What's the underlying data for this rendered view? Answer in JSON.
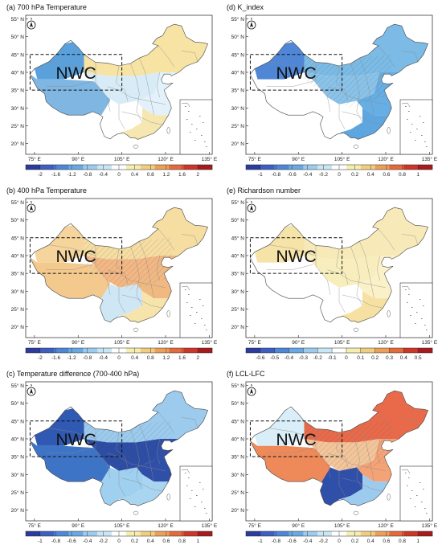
{
  "lat_labels": [
    "55° N",
    "50° N",
    "45° N",
    "40° N",
    "35° N",
    "30° N",
    "25° N",
    "20° N"
  ],
  "lon_labels": [
    "75° E",
    "90° E",
    "105° E",
    "120° E",
    "135° E"
  ],
  "region_label": "NWC",
  "north_arrow": {
    "letter": "N",
    "icon": "north-arrow-icon"
  },
  "panels": [
    {
      "id": "a",
      "title": "(a) 700 hPa Temperature",
      "colorbar_ticks": [
        "-2",
        "-1.6",
        "-1.2",
        "-0.8",
        "-0.4",
        "0",
        "0.4",
        "0.8",
        "1.2",
        "1.6",
        "2"
      ],
      "colorbar_colors": [
        "#2b3c9e",
        "#3e5fc1",
        "#4f86d6",
        "#6aa7e3",
        "#9ccbee",
        "#c9e6f5",
        "#ffffff",
        "#f6edb0",
        "#f1cd7f",
        "#ec9f58",
        "#e36a3d",
        "#cc3628",
        "#a81b1d"
      ],
      "map": {
        "west": "#7fb7e2",
        "northwest": "#5aa1dc",
        "north": "#f7e3a3",
        "east": "#e3f1fa",
        "south": "#ffffff",
        "southeast": "#f6e7b0",
        "center": "#d8ecf7"
      },
      "hatch": false
    },
    {
      "id": "b",
      "title": "(b) 400 hPa Temperature",
      "colorbar_ticks": [
        "-2",
        "-1.6",
        "-1.2",
        "-0.8",
        "-0.4",
        "0",
        "0.4",
        "0.8",
        "1.2",
        "1.6",
        "2"
      ],
      "colorbar_colors": [
        "#2b3c9e",
        "#3e5fc1",
        "#4f86d6",
        "#6aa7e3",
        "#9ccbee",
        "#c9e6f5",
        "#ffffff",
        "#f6edb0",
        "#f1cd7f",
        "#ec9f58",
        "#e36a3d",
        "#cc3628",
        "#a81b1d"
      ],
      "map": {
        "west": "#f3c98e",
        "northwest": "#f6d59c",
        "north": "#f6dda2",
        "east": "#f0b982",
        "south": "#cfe7f5",
        "southeast": "#f6e4ab",
        "center": "#f2b784"
      },
      "hatch": true
    },
    {
      "id": "c",
      "title": "(c) Temperature difference (700-400 hPa)",
      "colorbar_ticks": [
        "-1",
        "-0.8",
        "-0.6",
        "-0.4",
        "-0.2",
        "0",
        "0.2",
        "0.4",
        "0.6",
        "0.8",
        "1"
      ],
      "colorbar_colors": [
        "#2b3c9e",
        "#3e5fc1",
        "#4f86d6",
        "#6aa7e3",
        "#9ccbee",
        "#c9e6f5",
        "#ffffff",
        "#f6edb0",
        "#f1cd7f",
        "#ec9f58",
        "#e36a3d",
        "#cc3628",
        "#a81b1d"
      ],
      "map": {
        "west": "#3d74c6",
        "northwest": "#2f59b3",
        "north": "#9ccbee",
        "east": "#2f4fa8",
        "south": "#9fd0ef",
        "southeast": "#a9d5f0",
        "center": "#2d4da5"
      },
      "hatch": true
    },
    {
      "id": "d",
      "title": "(d) K_index",
      "colorbar_ticks": [
        "-1",
        "-0.8",
        "-0.6",
        "-0.4",
        "-0.2",
        "0",
        "0.2",
        "0.4",
        "0.6",
        "0.8",
        "1"
      ],
      "colorbar_colors": [
        "#2b3c9e",
        "#3e5fc1",
        "#4f86d6",
        "#6aa7e3",
        "#9ccbee",
        "#c9e6f5",
        "#ffffff",
        "#f6edb0",
        "#f1cd7f",
        "#ec9f58",
        "#e36a3d",
        "#cc3628",
        "#a81b1d"
      ],
      "map": {
        "west": "#ffffff",
        "northwest": "#4f86d6",
        "north": "#7bbbe6",
        "east": "#66aee3",
        "south": "#ffffff",
        "southeast": "#5ea6df",
        "center": "#8ac3e9"
      },
      "hatch": true
    },
    {
      "id": "e",
      "title": "(e) Richardson number",
      "colorbar_ticks": [
        "-0.6",
        "-0.5",
        "-0.4",
        "-0.3",
        "-0.2",
        "-0.1",
        "0",
        "0.1",
        "0.2",
        "0.3",
        "0.4",
        "0.5"
      ],
      "colorbar_colors": [
        "#2b3c9e",
        "#3e5fc1",
        "#4f86d6",
        "#6aa7e3",
        "#9ccbee",
        "#c9e6f5",
        "#ffffff",
        "#f6edb0",
        "#f1cd7f",
        "#ec9f58",
        "#e36a3d",
        "#cc3628",
        "#a81b1d"
      ],
      "map": {
        "west": "#ffffff",
        "northwest": "#f6e3a7",
        "north": "#f7eab8",
        "east": "#fbf1c8",
        "south": "#ffffff",
        "southeast": "#f6e1a3",
        "center": "#f8eebd"
      },
      "hatch": false
    },
    {
      "id": "f",
      "title": "(f) LCL-LFC",
      "colorbar_ticks": [
        "-1",
        "-0.8",
        "-0.6",
        "-0.4",
        "-0.2",
        "0",
        "0.2",
        "0.4",
        "0.6",
        "0.8",
        "1"
      ],
      "colorbar_colors": [
        "#2b3c9e",
        "#3e5fc1",
        "#4f86d6",
        "#6aa7e3",
        "#9ccbee",
        "#c9e6f5",
        "#ffffff",
        "#f6edb0",
        "#f1cd7f",
        "#ec9f58",
        "#e36a3d",
        "#cc3628",
        "#a81b1d"
      ],
      "map": {
        "west": "#ee8a5a",
        "northwest": "#d9eef8",
        "north": "#e86a4a",
        "east": "#f4a377",
        "south": "#2f4fa8",
        "southeast": "#9ccbee",
        "center": "#f3c59a"
      },
      "hatch": true
    }
  ]
}
